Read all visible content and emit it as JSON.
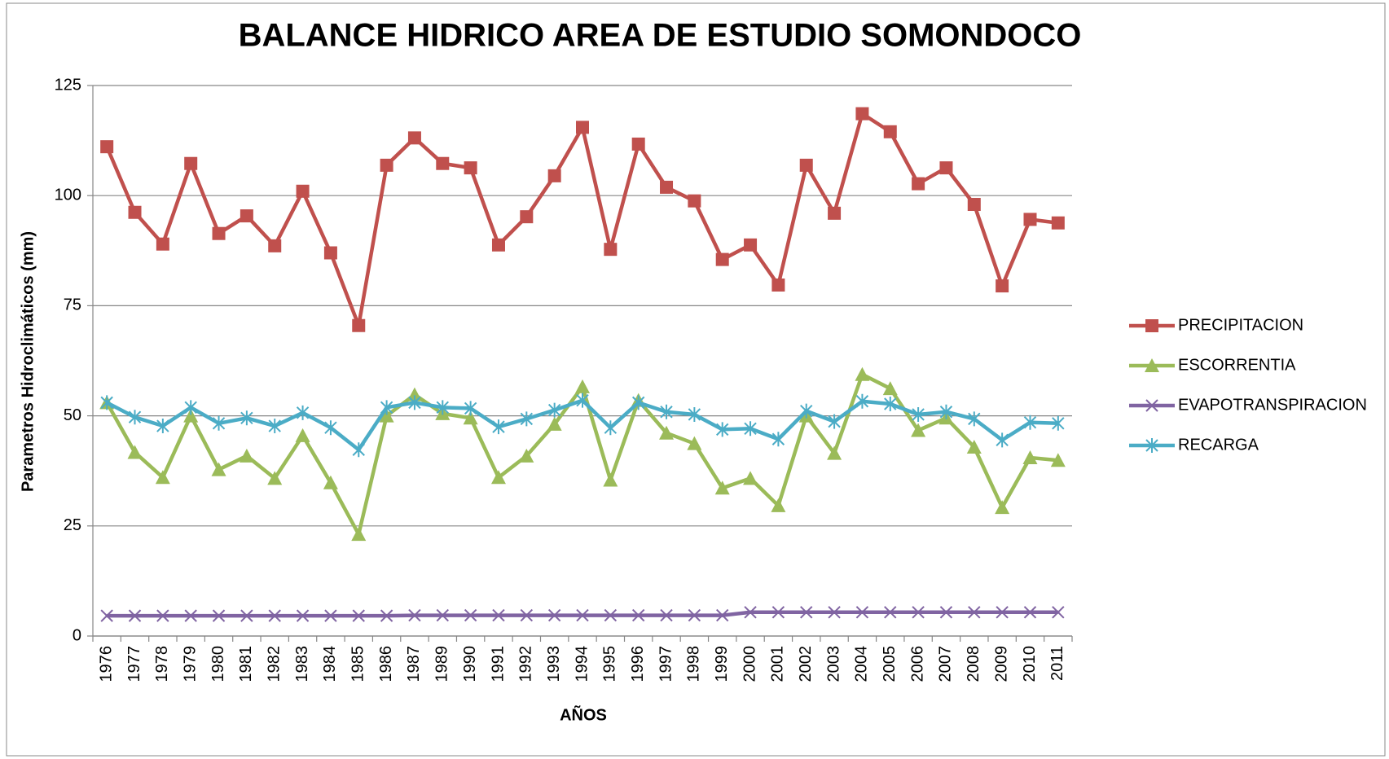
{
  "chart_data": {
    "type": "line",
    "title": "BALANCE HIDRICO AREA DE ESTUDIO SOMONDOCO",
    "x_label": "AÑOS",
    "y_label": "Parametros Hidroclimáticos (mm)",
    "categories": [
      "1976",
      "1977",
      "1978",
      "1979",
      "1980",
      "1981",
      "1982",
      "1983",
      "1984",
      "1985",
      "1986",
      "1987",
      "1989",
      "1990",
      "1991",
      "1992",
      "1993",
      "1994",
      "1995",
      "1996",
      "1997",
      "1998",
      "1999",
      "2000",
      "2001",
      "2002",
      "2003",
      "2004",
      "2005",
      "2006",
      "2007",
      "2008",
      "2009",
      "2010",
      "2011"
    ],
    "series": [
      {
        "name": "PRECIPITACION",
        "color": "#c0504d",
        "marker": "square",
        "values": [
          111.1,
          96.2,
          89.0,
          107.3,
          91.4,
          95.4,
          88.6,
          101.0,
          87.0,
          70.5,
          106.9,
          113.1,
          107.3,
          106.3,
          88.8,
          95.2,
          104.5,
          115.5,
          87.8,
          111.7,
          101.9,
          98.8,
          85.5,
          88.8,
          79.7,
          106.9,
          96.0,
          118.6,
          114.5,
          102.7,
          106.3,
          98.0,
          79.5,
          94.6,
          93.8
        ]
      },
      {
        "name": "ESCORRENTIA",
        "color": "#9bbb59",
        "marker": "triangle",
        "values": [
          53.0,
          41.7,
          36.0,
          50.0,
          37.8,
          40.9,
          35.8,
          45.5,
          34.8,
          23.1,
          50.0,
          54.8,
          50.5,
          49.5,
          36.0,
          40.9,
          48.1,
          56.6,
          35.4,
          53.5,
          46.1,
          43.7,
          33.6,
          35.8,
          29.6,
          50.0,
          41.5,
          59.4,
          56.2,
          46.7,
          49.5,
          42.9,
          29.2,
          40.5,
          39.9
        ]
      },
      {
        "name": "EVAPOTRANSPIRACION",
        "color": "#8064a2",
        "marker": "x",
        "values": [
          4.6,
          4.6,
          4.6,
          4.6,
          4.6,
          4.6,
          4.6,
          4.6,
          4.6,
          4.6,
          4.6,
          4.7,
          4.7,
          4.7,
          4.7,
          4.7,
          4.7,
          4.7,
          4.7,
          4.7,
          4.7,
          4.7,
          4.7,
          5.4,
          5.4,
          5.4,
          5.4,
          5.4,
          5.4,
          5.4,
          5.4,
          5.4,
          5.4,
          5.4,
          5.4
        ]
      },
      {
        "name": "RECARGA",
        "color": "#4bacc6",
        "marker": "star",
        "values": [
          53.0,
          49.7,
          47.7,
          51.9,
          48.3,
          49.5,
          47.7,
          50.7,
          47.3,
          42.3,
          51.9,
          53.0,
          51.9,
          51.7,
          47.5,
          49.3,
          51.3,
          53.5,
          47.3,
          53.0,
          50.9,
          50.3,
          46.9,
          47.1,
          44.7,
          51.1,
          48.7,
          53.3,
          52.7,
          50.3,
          50.9,
          49.3,
          44.5,
          48.5,
          48.3
        ]
      }
    ],
    "ylim": [
      0,
      125
    ],
    "yticks": [
      0,
      25,
      50,
      75,
      100,
      125
    ],
    "grid": true,
    "legend": "right"
  }
}
